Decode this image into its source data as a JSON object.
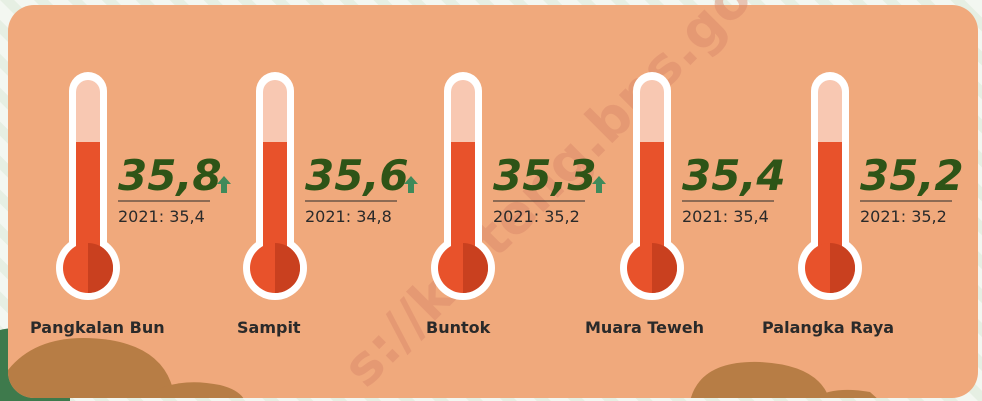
{
  "watermark": "s://kalteng.bps.go.id",
  "items": [
    {
      "name": "Pangkalan Bun",
      "value": "35,8",
      "previous": "2021: 35,4",
      "arrow_up": true
    },
    {
      "name": "Sampit",
      "value": "35,6",
      "previous": "2021: 34,8",
      "arrow_up": true
    },
    {
      "name": "Buntok",
      "value": "35,3",
      "previous": "2021: 35,2",
      "arrow_up": true
    },
    {
      "name": "Muara Teweh",
      "value": "35,4",
      "previous": "2021: 35,4",
      "arrow_up": false
    },
    {
      "name": "Palangka Raya",
      "value": "35,2",
      "previous": "2021: 35,2",
      "arrow_up": false
    }
  ]
}
